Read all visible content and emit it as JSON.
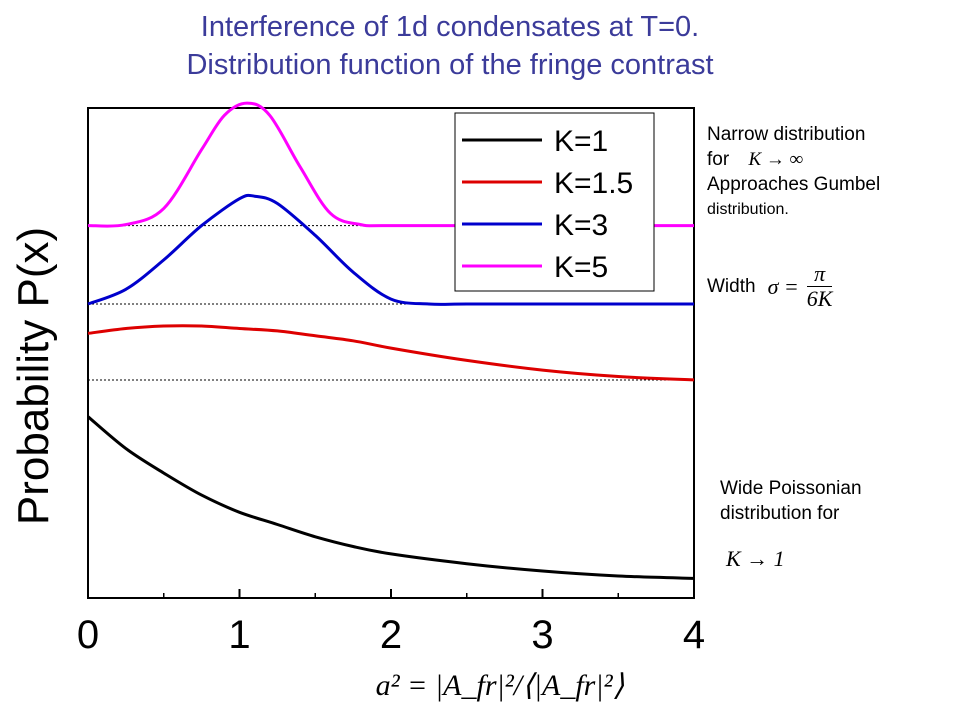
{
  "title": {
    "line1": "Interference of 1d condensates at T=0.",
    "line2": "Distribution function of the fringe contrast"
  },
  "annotations": {
    "narrow_line1": "Narrow distribution",
    "narrow_for": "for",
    "narrow_limit": "K → ∞",
    "gumbel_line1": "Approaches Gumbel",
    "gumbel_line2": "distribution.",
    "width_label": "Width",
    "width_formula_lhs": "σ =",
    "width_formula_num": "π",
    "width_formula_den": "6K",
    "wide_line1": "Wide Poissonian",
    "wide_line2": "distribution for",
    "wide_limit": "K → 1"
  },
  "colors": {
    "title": "#3b3b9a",
    "k1": "#000000",
    "k1_5": "#dd0000",
    "k3": "#0000cc",
    "k5": "#ff00ff"
  },
  "chart_data": {
    "type": "line",
    "ylabel": "Probability P(x)",
    "xlabel": "a² = |A_fr|²/⟨|A_fr|²⟩",
    "xlim": [
      0,
      4
    ],
    "xticks": [
      "0",
      "1",
      "2",
      "3",
      "4"
    ],
    "legend_position": "top-right",
    "series": [
      {
        "name": "K=1",
        "color": "#000000",
        "x": [
          0,
          0.25,
          0.5,
          0.75,
          1.0,
          1.25,
          1.5,
          1.75,
          2.0,
          2.5,
          3.0,
          3.5,
          4.0
        ],
        "y": [
          0.37,
          0.305,
          0.255,
          0.21,
          0.175,
          0.15,
          0.125,
          0.105,
          0.09,
          0.07,
          0.055,
          0.045,
          0.04
        ]
      },
      {
        "name": "K=1.5",
        "color": "#dd0000",
        "x": [
          0,
          0.25,
          0.5,
          0.75,
          1.0,
          1.25,
          1.5,
          1.75,
          2.0,
          2.5,
          3.0,
          3.5,
          4.0
        ],
        "y": [
          0.54,
          0.55,
          0.555,
          0.555,
          0.55,
          0.545,
          0.535,
          0.525,
          0.51,
          0.485,
          0.465,
          0.452,
          0.445
        ]
      },
      {
        "name": "K=3",
        "color": "#0000cc",
        "x": [
          0,
          0.25,
          0.5,
          0.75,
          1.0,
          1.1,
          1.25,
          1.5,
          1.75,
          2.0,
          2.25,
          2.5,
          3.0,
          3.5,
          4.0
        ],
        "y": [
          0.6,
          0.63,
          0.69,
          0.76,
          0.815,
          0.82,
          0.805,
          0.74,
          0.665,
          0.61,
          0.6,
          0.6,
          0.6,
          0.6,
          0.6
        ]
      },
      {
        "name": "K=5",
        "color": "#ff00ff",
        "x": [
          0,
          0.25,
          0.5,
          0.75,
          0.9,
          1.05,
          1.2,
          1.4,
          1.6,
          1.8,
          2.0,
          3.0,
          4.0
        ],
        "y": [
          0.76,
          0.762,
          0.795,
          0.915,
          0.985,
          1.01,
          0.985,
          0.88,
          0.785,
          0.762,
          0.76,
          0.76,
          0.76
        ]
      }
    ],
    "baselines": [
      0.445,
      0.6,
      0.76
    ]
  }
}
